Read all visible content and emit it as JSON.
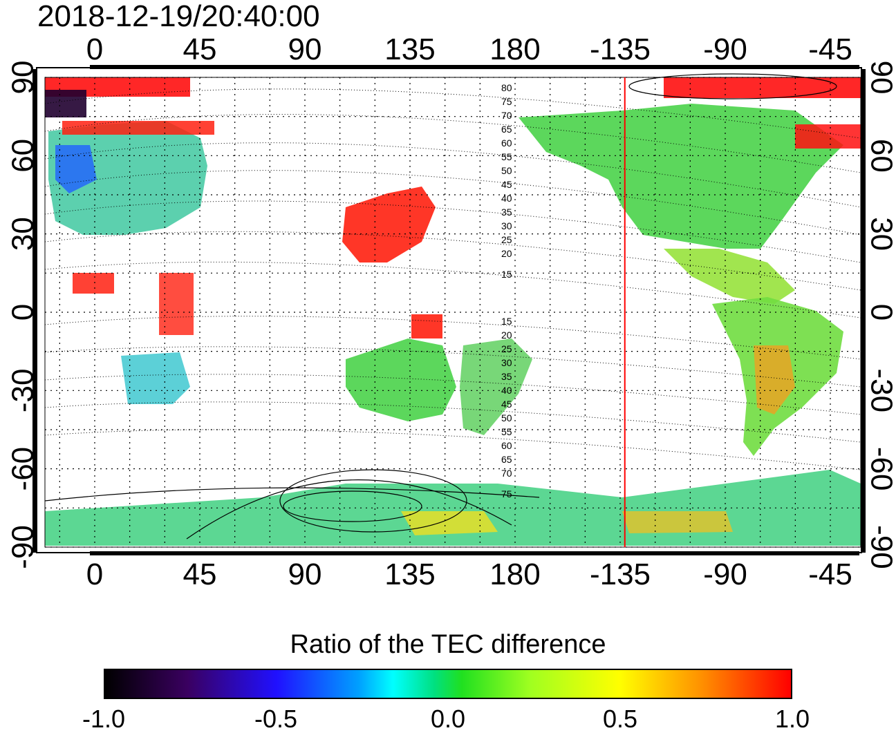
{
  "title": "2018-12-19/20:40:00",
  "axes": {
    "lon_ticks": [
      "0",
      "45",
      "90",
      "135",
      "180",
      "-135",
      "-90",
      "-45"
    ],
    "lat_ticks": [
      "90",
      "60",
      "30",
      "0",
      "-30",
      "-60",
      "-90"
    ]
  },
  "terminator_lon": -133,
  "mlat_labels_north": [
    "80",
    "75",
    "70",
    "65",
    "60",
    "55",
    "50",
    "45",
    "40",
    "35",
    "30",
    "25",
    "20",
    "15"
  ],
  "mlat_labels_south": [
    "15",
    "20",
    "25",
    "30",
    "35",
    "40",
    "45",
    "50",
    "55",
    "60",
    "65",
    "70",
    "75"
  ],
  "colorbar": {
    "title": "Ratio of the TEC difference",
    "ticks": [
      "-1.0",
      "-0.5",
      "0.0",
      "0.5",
      "1.0"
    ],
    "colors": {
      "min": "#000000",
      "low": "#2010ff",
      "mid": "#20e020",
      "high": "#ffff00",
      "max": "#ff0000"
    }
  }
}
